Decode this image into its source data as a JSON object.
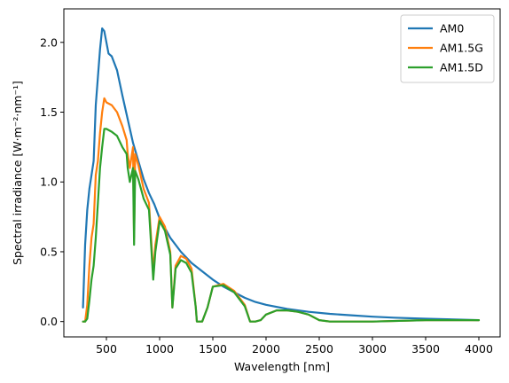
{
  "chart_data": {
    "type": "line",
    "title": "",
    "xlabel": "Wavelength [nm]",
    "ylabel": "Spectral irradiance [W·m⁻²·nm⁻¹]",
    "xlim": [
      100,
      4200
    ],
    "ylim": [
      -0.11,
      2.24
    ],
    "xticks": [
      500,
      1000,
      1500,
      2000,
      2500,
      3000,
      3500,
      4000
    ],
    "xtick_labels": [
      "500",
      "1000",
      "1500",
      "2000",
      "2500",
      "3000",
      "3500",
      "4000"
    ],
    "yticks": [
      0.0,
      0.5,
      1.0,
      1.5,
      2.0
    ],
    "ytick_labels": [
      "0.0",
      "0.5",
      "1.0",
      "1.5",
      "2.0"
    ],
    "grid": false,
    "legend": "top-right",
    "series": [
      {
        "name": "AM0",
        "color": "#1f77b4",
        "x": [
          280,
          300,
          320,
          340,
          360,
          380,
          400,
          420,
          440,
          460,
          480,
          500,
          520,
          550,
          600,
          650,
          700,
          750,
          800,
          850,
          900,
          950,
          1000,
          1100,
          1200,
          1300,
          1400,
          1500,
          1600,
          1700,
          1800,
          1900,
          2000,
          2200,
          2400,
          2600,
          2800,
          3000,
          3200,
          3500,
          4000
        ],
        "y": [
          0.1,
          0.55,
          0.8,
          0.95,
          1.05,
          1.15,
          1.55,
          1.75,
          1.95,
          2.1,
          2.08,
          2.0,
          1.92,
          1.9,
          1.8,
          1.62,
          1.45,
          1.28,
          1.15,
          1.02,
          0.92,
          0.84,
          0.74,
          0.6,
          0.5,
          0.42,
          0.36,
          0.3,
          0.25,
          0.21,
          0.17,
          0.14,
          0.12,
          0.09,
          0.07,
          0.055,
          0.045,
          0.035,
          0.028,
          0.02,
          0.01
        ]
      },
      {
        "name": "AM1.5G",
        "color": "#ff7f0e",
        "x": [
          280,
          300,
          320,
          340,
          360,
          380,
          400,
          420,
          440,
          460,
          480,
          500,
          550,
          600,
          650,
          690,
          700,
          720,
          750,
          760,
          770,
          800,
          850,
          900,
          920,
          940,
          960,
          1000,
          1050,
          1100,
          1120,
          1140,
          1150,
          1200,
          1250,
          1300,
          1340,
          1350,
          1400,
          1450,
          1500,
          1600,
          1700,
          1800,
          1850,
          1900,
          1950,
          2000,
          2100,
          2200,
          2300,
          2400,
          2500,
          2600,
          3000,
          3500,
          4000
        ],
        "y": [
          0.0,
          0.0,
          0.12,
          0.4,
          0.6,
          0.7,
          1.05,
          1.15,
          1.35,
          1.5,
          1.6,
          1.57,
          1.55,
          1.5,
          1.4,
          1.3,
          1.2,
          1.1,
          1.25,
          0.6,
          1.2,
          1.12,
          0.95,
          0.85,
          0.6,
          0.35,
          0.55,
          0.75,
          0.68,
          0.5,
          0.1,
          0.3,
          0.4,
          0.47,
          0.45,
          0.38,
          0.1,
          0.0,
          0.0,
          0.1,
          0.25,
          0.27,
          0.22,
          0.12,
          0.0,
          0.0,
          0.01,
          0.05,
          0.08,
          0.08,
          0.07,
          0.05,
          0.01,
          0.0,
          0.0,
          0.01,
          0.01
        ]
      },
      {
        "name": "AM1.5D",
        "color": "#2ca02c",
        "x": [
          280,
          300,
          320,
          340,
          360,
          380,
          400,
          420,
          440,
          460,
          480,
          500,
          550,
          600,
          650,
          690,
          700,
          720,
          750,
          760,
          770,
          800,
          850,
          900,
          920,
          940,
          960,
          1000,
          1050,
          1100,
          1120,
          1140,
          1150,
          1200,
          1250,
          1300,
          1340,
          1350,
          1400,
          1450,
          1500,
          1600,
          1700,
          1800,
          1850,
          1900,
          1950,
          2000,
          2100,
          2200,
          2300,
          2400,
          2500,
          2600,
          3000,
          3500,
          4000
        ],
        "y": [
          0.0,
          0.0,
          0.02,
          0.15,
          0.3,
          0.4,
          0.6,
          0.85,
          1.1,
          1.25,
          1.38,
          1.38,
          1.36,
          1.33,
          1.25,
          1.2,
          1.1,
          1.0,
          1.1,
          0.55,
          1.08,
          1.02,
          0.88,
          0.8,
          0.55,
          0.3,
          0.5,
          0.72,
          0.65,
          0.48,
          0.1,
          0.28,
          0.38,
          0.44,
          0.42,
          0.35,
          0.1,
          0.0,
          0.0,
          0.1,
          0.25,
          0.26,
          0.21,
          0.11,
          0.0,
          0.0,
          0.01,
          0.05,
          0.08,
          0.08,
          0.07,
          0.05,
          0.01,
          0.0,
          0.0,
          0.01,
          0.01
        ]
      }
    ]
  }
}
